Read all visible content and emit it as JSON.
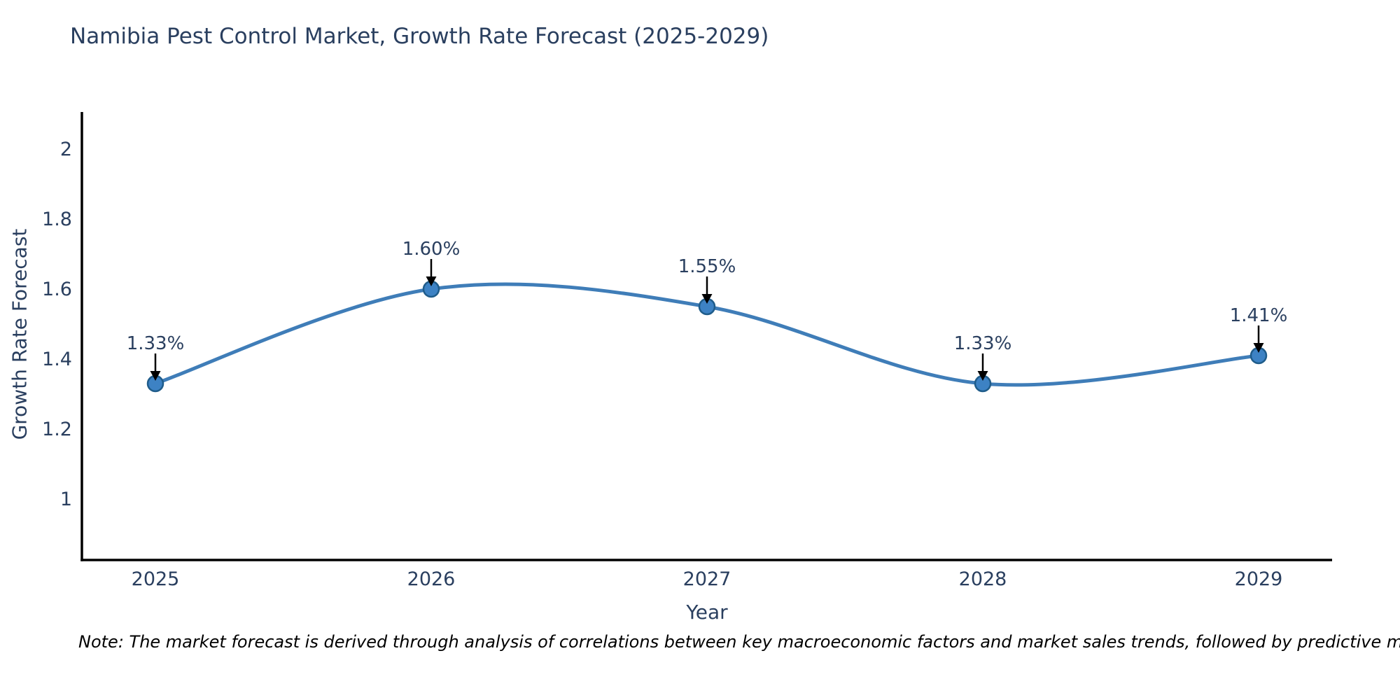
{
  "title": "Namibia Pest Control Market, Growth Rate Forecast (2025-2029)",
  "note": "Note: The market forecast is derived through analysis of correlations between key macroeconomic factors and market sales trends, followed by predictive modeling to project future sales",
  "chart_data": {
    "type": "line",
    "curve": "spline",
    "title": "Namibia Pest Control Market, Growth Rate Forecast (2025-2029)",
    "x": [
      "2025",
      "2026",
      "2027",
      "2028",
      "2029"
    ],
    "series": [
      {
        "name": "Growth Rate Forecast",
        "values": [
          1.33,
          1.6,
          1.55,
          1.33,
          1.41
        ]
      }
    ],
    "point_labels": [
      "1.33%",
      "1.60%",
      "1.55%",
      "1.33%",
      "1.41%"
    ],
    "xlabel": "Year",
    "ylabel": "Growth Rate Forecast",
    "ylim": [
      0.83,
      2.11
    ],
    "yticks": {
      "values": [
        1,
        1.2,
        1.4,
        1.6,
        1.8,
        2
      ],
      "labels": [
        "1",
        "1.2",
        "1.4",
        "1.6",
        "1.8",
        "2"
      ]
    },
    "grid": false,
    "legend": "none",
    "colors": {
      "line": "#3f7db8",
      "marker_fill": "#3d82c4",
      "marker_edge": "#1f5c8a",
      "axis_spine": "#000000",
      "arrow": "#000000",
      "text": "#2a3f5f"
    }
  }
}
